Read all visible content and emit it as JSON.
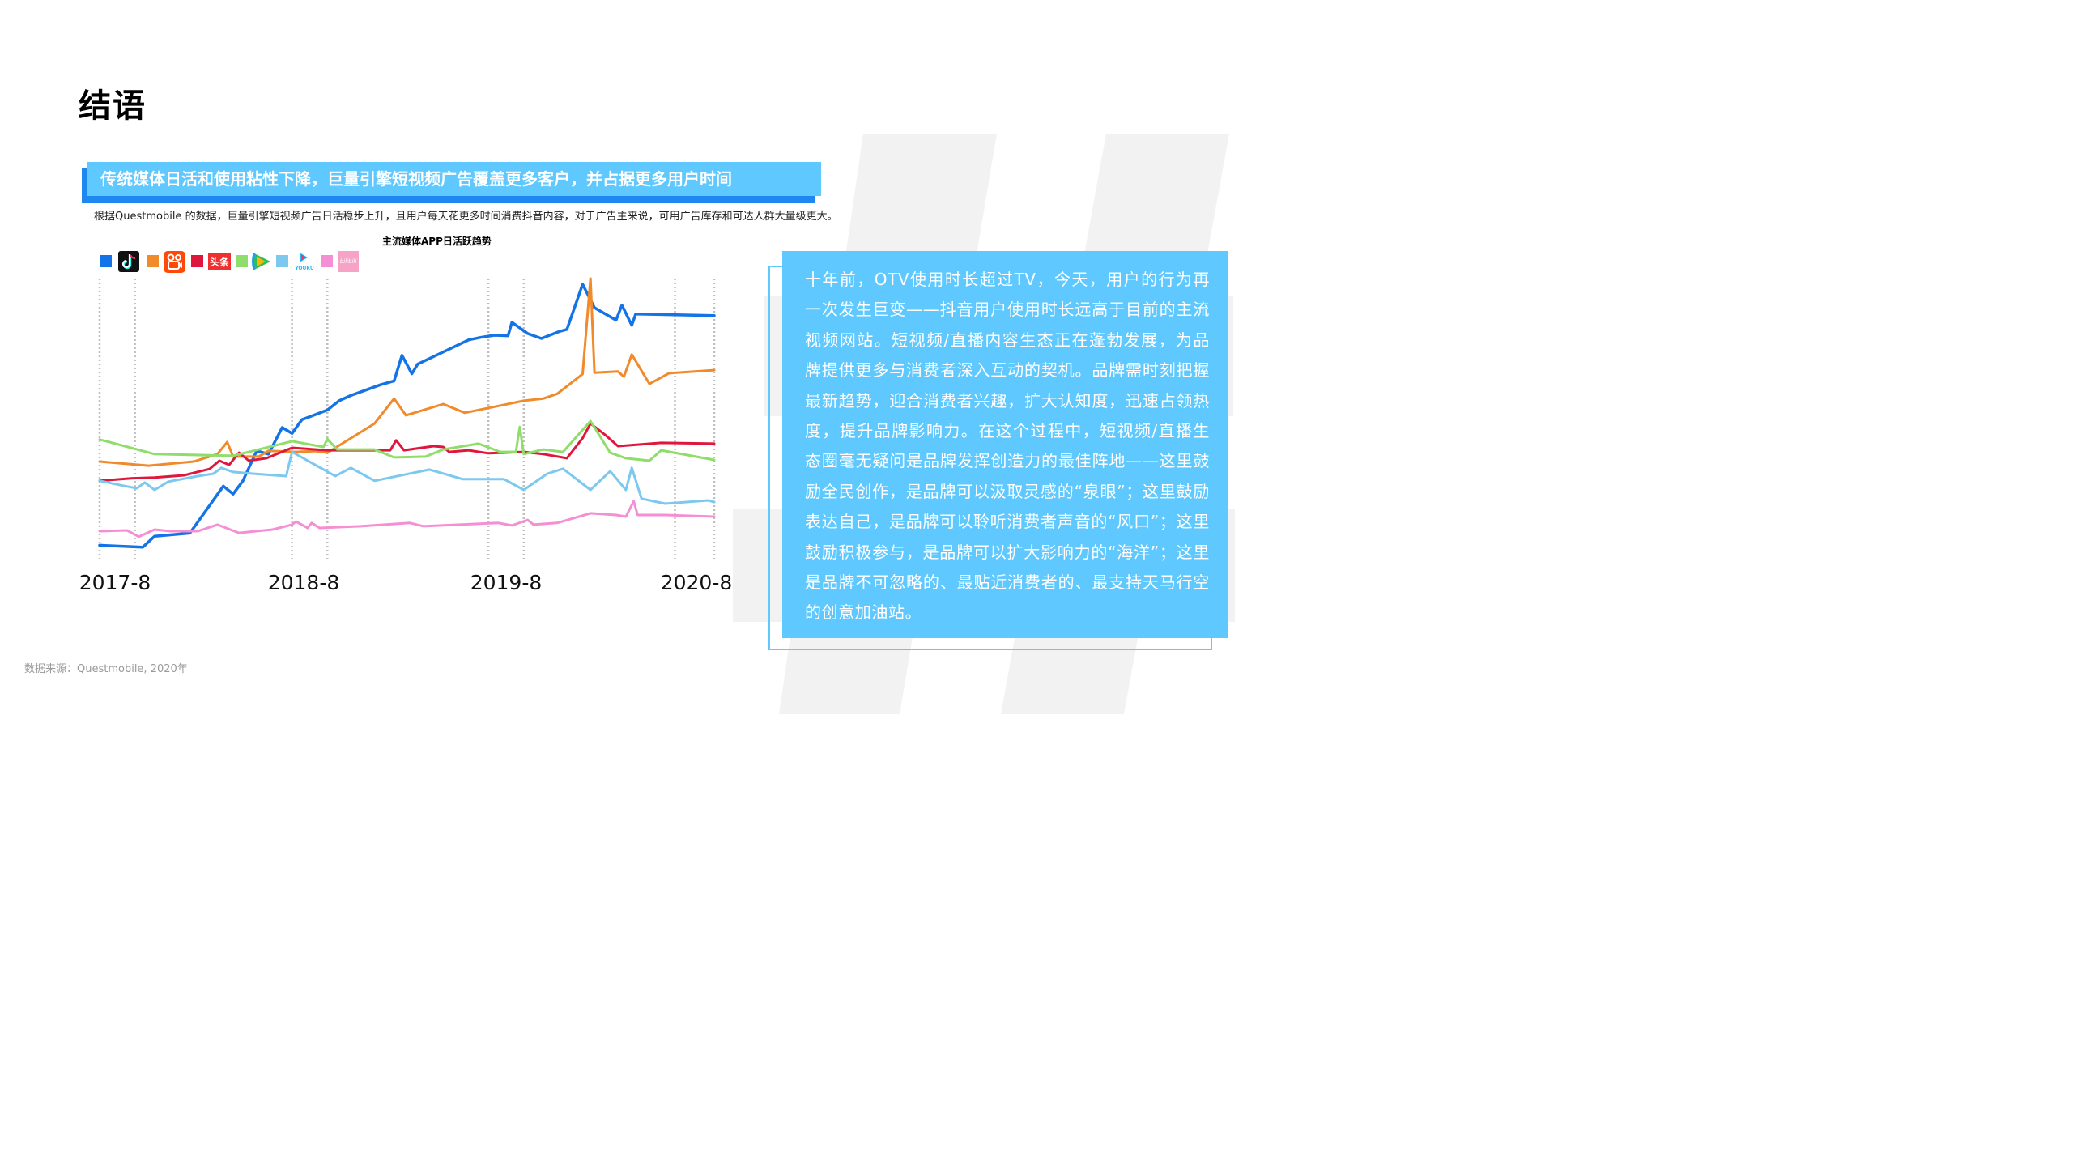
{
  "page": {
    "title": "结语",
    "headline": "传统媒体日活和使用粘性下降，巨量引擎短视频广告覆盖更多客户，并占据更多用户时间",
    "subtext": "根据Questmobile 的数据，巨量引擎短视频广告日活稳步上升，且用户每天花更多时间消费抖音内容，对于广告主来说，可用广告库存和可达人群大量级更大。",
    "quote": "十年前，OTV使用时长超过TV，今天，用户的行为再一次发生巨变——抖音用户使用时长远高于目前的主流视频网站。短视频/直播内容生态正在蓬勃发展，为品牌提供更多与消费者深入互动的契机。品牌需时刻把握最新趋势，迎合消费者兴趣，扩大认知度，迅速占领热度，提升品牌影响力。在这个过程中，短视频/直播生态圈毫无疑问是品牌发挥创造力的最佳阵地——这里鼓励全民创作，是品牌可以汲取灵感的“泉眼”；这里鼓励表达自己，是品牌可以聆听消费者声音的“风口”；这里鼓励积极参与，是品牌可以扩大影响力的“海洋”；这里是品牌不可忽略的、最贴近消费者的、最支持天马行空的创意加油站。",
    "source": "数据来源：Questmobile, 2020年"
  },
  "colors": {
    "accent_light": "#5ec8ff",
    "accent_dark": "#1e88f0",
    "slash_gray": "#f2f2f2"
  },
  "chart_data": {
    "type": "line",
    "title": "主流媒体APP日活跃趋势",
    "xlabel": "",
    "ylabel": "",
    "x_tick_labels": [
      "2017-8",
      "2018-8",
      "2019-8",
      "2020-8"
    ],
    "x_range": [
      2017.6,
      2020.75
    ],
    "y_range": [
      0,
      100
    ],
    "grid": "vertical dotted",
    "legend_position": "top-left",
    "legend_icons": [
      "douyin-logo",
      "kuaishou-logo",
      "toutiao-logo",
      "tencent-video-logo",
      "youku-logo",
      "bilibili-logo"
    ],
    "logo_text": {
      "toutiao": "头条",
      "youku": "YOUKU",
      "bilibili": "bilibili"
    },
    "dashed_gridlines_x": [
      2017.62,
      2017.8,
      2018.6,
      2018.78,
      2019.6,
      2019.78,
      2020.55,
      2020.75
    ],
    "series": [
      {
        "name": "抖音",
        "color": "#1473e6",
        "points": [
          [
            2017.62,
            4.3
          ],
          [
            2017.84,
            3.6
          ],
          [
            2017.9,
            7.6
          ],
          [
            2018.08,
            8.7
          ],
          [
            2018.25,
            25.8
          ],
          [
            2018.3,
            22.9
          ],
          [
            2018.35,
            27.7
          ],
          [
            2018.42,
            38.6
          ],
          [
            2018.48,
            37.4
          ],
          [
            2018.55,
            47.1
          ],
          [
            2018.6,
            44.9
          ],
          [
            2018.65,
            49.9
          ],
          [
            2018.78,
            53.4
          ],
          [
            2018.84,
            56.8
          ],
          [
            2018.9,
            58.7
          ],
          [
            2018.98,
            60.8
          ],
          [
            2019.05,
            62.6
          ],
          [
            2019.12,
            64.0
          ],
          [
            2019.16,
            73.3
          ],
          [
            2019.21,
            66.6
          ],
          [
            2019.24,
            70.1
          ],
          [
            2019.5,
            78.9
          ],
          [
            2019.56,
            79.8
          ],
          [
            2019.63,
            80.6
          ],
          [
            2019.7,
            80.4
          ],
          [
            2019.72,
            85.3
          ],
          [
            2019.8,
            81.2
          ],
          [
            2019.87,
            79.4
          ],
          [
            2019.96,
            81.9
          ],
          [
            2020.0,
            82.7
          ],
          [
            2020.08,
            99.1
          ],
          [
            2020.14,
            90.6
          ],
          [
            2020.25,
            86.1
          ],
          [
            2020.28,
            91.5
          ],
          [
            2020.33,
            84.2
          ],
          [
            2020.35,
            88.3
          ],
          [
            2020.75,
            87.7
          ]
        ]
      },
      {
        "name": "快手",
        "color": "#f08a2a",
        "points": [
          [
            2017.62,
            34.7
          ],
          [
            2017.87,
            33.2
          ],
          [
            2018.1,
            34.7
          ],
          [
            2018.22,
            37.4
          ],
          [
            2018.27,
            41.8
          ],
          [
            2018.3,
            36.5
          ],
          [
            2018.43,
            36.5
          ],
          [
            2018.48,
            38.6
          ],
          [
            2018.62,
            38.2
          ],
          [
            2018.72,
            38.5
          ],
          [
            2018.78,
            37.9
          ],
          [
            2019.02,
            48.5
          ],
          [
            2019.12,
            57.6
          ],
          [
            2019.18,
            51.5
          ],
          [
            2019.37,
            55.6
          ],
          [
            2019.48,
            52.4
          ],
          [
            2019.78,
            56.8
          ],
          [
            2019.88,
            57.6
          ],
          [
            2019.95,
            59.3
          ],
          [
            2020.08,
            66.5
          ],
          [
            2020.12,
            101.2
          ],
          [
            2020.14,
            67.0
          ],
          [
            2020.26,
            67.4
          ],
          [
            2020.29,
            65.5
          ],
          [
            2020.33,
            73.6
          ],
          [
            2020.42,
            62.9
          ],
          [
            2020.52,
            66.8
          ],
          [
            2020.75,
            67.9
          ]
        ]
      },
      {
        "name": "头条",
        "color": "#e0173c",
        "points": [
          [
            2017.62,
            27.7
          ],
          [
            2017.78,
            28.6
          ],
          [
            2017.9,
            28.9
          ],
          [
            2018.05,
            29.7
          ],
          [
            2018.18,
            32.0
          ],
          [
            2018.23,
            35.0
          ],
          [
            2018.28,
            33.5
          ],
          [
            2018.33,
            37.9
          ],
          [
            2018.38,
            35.0
          ],
          [
            2018.47,
            35.9
          ],
          [
            2018.6,
            39.7
          ],
          [
            2018.78,
            38.8
          ],
          [
            2019.1,
            38.8
          ],
          [
            2019.13,
            42.4
          ],
          [
            2019.17,
            38.8
          ],
          [
            2019.32,
            40.3
          ],
          [
            2019.37,
            40.0
          ],
          [
            2019.4,
            38.2
          ],
          [
            2019.5,
            38.8
          ],
          [
            2019.6,
            37.7
          ],
          [
            2019.78,
            38.2
          ],
          [
            2019.88,
            37.4
          ],
          [
            2020.0,
            35.9
          ],
          [
            2020.08,
            43.2
          ],
          [
            2020.12,
            48.5
          ],
          [
            2020.2,
            44.1
          ],
          [
            2020.26,
            40.3
          ],
          [
            2020.48,
            41.5
          ],
          [
            2020.75,
            41.2
          ]
        ]
      },
      {
        "name": "腾讯视频",
        "color": "#8fdd6a",
        "points": [
          [
            2017.62,
            42.7
          ],
          [
            2017.9,
            37.4
          ],
          [
            2018.3,
            36.8
          ],
          [
            2018.6,
            42.1
          ],
          [
            2018.76,
            40.0
          ],
          [
            2018.78,
            42.9
          ],
          [
            2018.83,
            39.1
          ],
          [
            2019.02,
            39.1
          ],
          [
            2019.12,
            36.2
          ],
          [
            2019.28,
            36.5
          ],
          [
            2019.37,
            39.1
          ],
          [
            2019.55,
            41.2
          ],
          [
            2019.66,
            38.2
          ],
          [
            2019.74,
            38.2
          ],
          [
            2019.76,
            47.3
          ],
          [
            2019.78,
            37.4
          ],
          [
            2019.88,
            39.1
          ],
          [
            2019.98,
            38.2
          ],
          [
            2020.12,
            49.4
          ],
          [
            2020.22,
            37.9
          ],
          [
            2020.3,
            35.9
          ],
          [
            2020.42,
            35.0
          ],
          [
            2020.48,
            38.8
          ],
          [
            2020.75,
            35.3
          ]
        ]
      },
      {
        "name": "优酷",
        "color": "#7cc8ef",
        "points": [
          [
            2017.62,
            27.7
          ],
          [
            2017.75,
            25.8
          ],
          [
            2017.81,
            25.0
          ],
          [
            2017.85,
            27.1
          ],
          [
            2017.9,
            24.4
          ],
          [
            2017.97,
            27.4
          ],
          [
            2018.12,
            29.4
          ],
          [
            2018.2,
            30.3
          ],
          [
            2018.24,
            32.4
          ],
          [
            2018.3,
            30.9
          ],
          [
            2018.4,
            30.3
          ],
          [
            2018.57,
            29.4
          ],
          [
            2018.6,
            38.2
          ],
          [
            2018.82,
            29.4
          ],
          [
            2018.9,
            32.4
          ],
          [
            2019.02,
            27.7
          ],
          [
            2019.3,
            31.8
          ],
          [
            2019.47,
            28.3
          ],
          [
            2019.68,
            28.3
          ],
          [
            2019.78,
            24.4
          ],
          [
            2019.9,
            30.3
          ],
          [
            2019.98,
            32.1
          ],
          [
            2020.12,
            24.4
          ],
          [
            2020.22,
            31.2
          ],
          [
            2020.3,
            24.4
          ],
          [
            2020.33,
            32.4
          ],
          [
            2020.38,
            21.2
          ],
          [
            2020.5,
            19.4
          ],
          [
            2020.72,
            20.6
          ],
          [
            2020.75,
            20.0
          ]
        ]
      },
      {
        "name": "哔哩哔哩",
        "color": "#f58fd4",
        "points": [
          [
            2017.62,
            9.4
          ],
          [
            2017.76,
            9.7
          ],
          [
            2017.82,
            7.4
          ],
          [
            2017.9,
            10.0
          ],
          [
            2017.98,
            9.4
          ],
          [
            2018.12,
            9.4
          ],
          [
            2018.22,
            11.8
          ],
          [
            2018.33,
            8.8
          ],
          [
            2018.5,
            10.0
          ],
          [
            2018.6,
            11.8
          ],
          [
            2018.62,
            12.9
          ],
          [
            2018.68,
            10.6
          ],
          [
            2018.7,
            12.4
          ],
          [
            2018.74,
            10.6
          ],
          [
            2018.95,
            11.2
          ],
          [
            2019.2,
            12.4
          ],
          [
            2019.27,
            11.2
          ],
          [
            2019.65,
            12.4
          ],
          [
            2019.72,
            11.5
          ],
          [
            2019.8,
            13.5
          ],
          [
            2019.83,
            11.8
          ],
          [
            2019.95,
            12.4
          ],
          [
            2020.12,
            15.9
          ],
          [
            2020.25,
            15.3
          ],
          [
            2020.3,
            14.7
          ],
          [
            2020.34,
            20.3
          ],
          [
            2020.36,
            15.3
          ],
          [
            2020.5,
            15.3
          ],
          [
            2020.75,
            14.7
          ]
        ]
      }
    ]
  }
}
